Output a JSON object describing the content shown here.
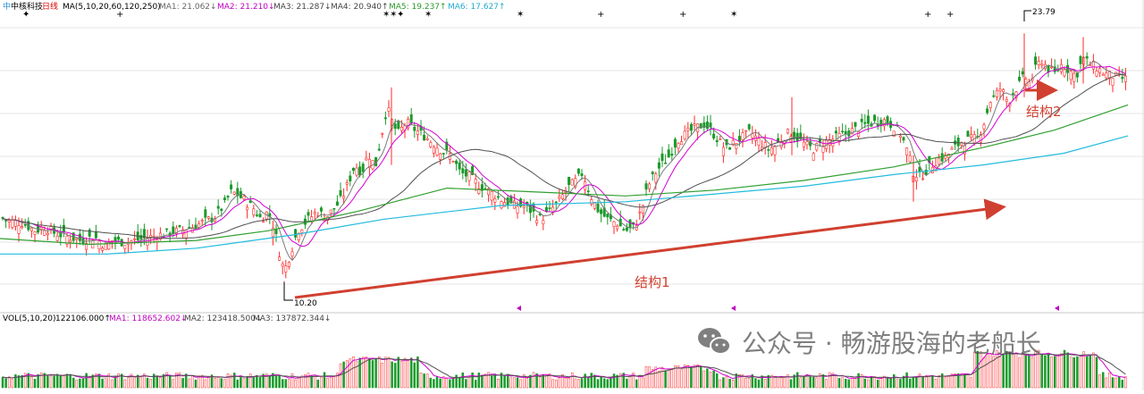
{
  "colors": {
    "up": "#ff2a2a",
    "down": "#1a9a2a",
    "ma1": "#7a7a7a",
    "ma2": "#d400d4",
    "ma3": "#505050",
    "ma4": "#30a030",
    "ma5": "#22bbdd",
    "annot": "#d04030",
    "vol_ma1": "#d400d4",
    "vol_ma2": "#505050"
  },
  "header": {
    "name": "中核科技",
    "period": "日线",
    "ma_params": "MA(5,10,20,60,120,250)",
    "ma1": "MA1: 21.062↓",
    "ma2": "MA2: 21.210↓",
    "ma3": "MA3: 21.287↓",
    "ma4": "MA4: 20.940↑",
    "ma5": "MA5: 19.237↑",
    "ma6": "MA6: 17.627↑"
  },
  "vol_header": {
    "params": "VOL(5,10,20)",
    "value": "122106.000↑",
    "ma1": "MA1: 118652.602↓",
    "ma2": "MA2: 123418.500↓",
    "ma3": "MA3: 137872.344↓"
  },
  "annotations": {
    "low_label": "10.20",
    "high_label": "23.79",
    "struct1": "结构1",
    "struct2": "结构2"
  },
  "watermark": {
    "text": "公众号 · 畅游股海的老船长",
    "icon": "wechat-icon"
  },
  "chart_data": {
    "type": "candlestick",
    "y_range": [
      9.6,
      24.5
    ],
    "series": [
      "MA1",
      "MA2",
      "MA3",
      "MA4",
      "MA5",
      "MA6"
    ],
    "close_path": [
      [
        0,
        14.3
      ],
      [
        10,
        14.1
      ],
      [
        25,
        14.0
      ],
      [
        40,
        13.6
      ],
      [
        50,
        13.8
      ],
      [
        60,
        13.5
      ],
      [
        75,
        13.3
      ],
      [
        90,
        13.1
      ],
      [
        105,
        13.3
      ],
      [
        118,
        12.8
      ],
      [
        125,
        13.1
      ],
      [
        140,
        13.0
      ],
      [
        160,
        13.2
      ],
      [
        180,
        13.4
      ],
      [
        200,
        13.6
      ],
      [
        215,
        13.8
      ],
      [
        225,
        14.0
      ],
      [
        240,
        14.3
      ],
      [
        252,
        15.0
      ],
      [
        258,
        15.6
      ],
      [
        265,
        15.5
      ],
      [
        275,
        15.1
      ],
      [
        285,
        14.7
      ],
      [
        292,
        14.2
      ],
      [
        300,
        14.6
      ],
      [
        307,
        13.7
      ],
      [
        313,
        12.4
      ],
      [
        318,
        11.5
      ],
      [
        324,
        12.3
      ],
      [
        333,
        13.6
      ],
      [
        345,
        14.2
      ],
      [
        355,
        14.6
      ],
      [
        365,
        14.3
      ],
      [
        375,
        14.8
      ],
      [
        383,
        15.3
      ],
      [
        390,
        16.1
      ],
      [
        397,
        17.0
      ],
      [
        405,
        16.6
      ],
      [
        412,
        17.6
      ],
      [
        420,
        16.9
      ],
      [
        428,
        18.8
      ],
      [
        433,
        20.0
      ],
      [
        438,
        19.3
      ],
      [
        445,
        18.6
      ],
      [
        455,
        19.2
      ],
      [
        465,
        18.8
      ],
      [
        475,
        18.5
      ],
      [
        485,
        18.1
      ],
      [
        495,
        17.7
      ],
      [
        505,
        17.5
      ],
      [
        515,
        16.6
      ],
      [
        525,
        16.4
      ],
      [
        535,
        16.0
      ],
      [
        545,
        15.7
      ],
      [
        555,
        15.4
      ],
      [
        565,
        15.1
      ],
      [
        575,
        14.9
      ],
      [
        585,
        14.9
      ],
      [
        595,
        14.6
      ],
      [
        605,
        14.2
      ],
      [
        615,
        14.6
      ],
      [
        625,
        15.1
      ],
      [
        635,
        15.8
      ],
      [
        645,
        16.2
      ],
      [
        652,
        16.6
      ],
      [
        660,
        15.5
      ],
      [
        670,
        14.6
      ],
      [
        680,
        14.2
      ],
      [
        690,
        14.0
      ],
      [
        700,
        13.6
      ],
      [
        710,
        13.8
      ],
      [
        718,
        14.7
      ],
      [
        725,
        15.9
      ],
      [
        732,
        16.5
      ],
      [
        740,
        17.0
      ],
      [
        748,
        17.4
      ],
      [
        758,
        18.3
      ],
      [
        768,
        18.6
      ],
      [
        778,
        18.9
      ],
      [
        788,
        19.1
      ],
      [
        795,
        18.8
      ],
      [
        805,
        18.2
      ],
      [
        812,
        17.8
      ],
      [
        820,
        18.1
      ],
      [
        830,
        18.4
      ],
      [
        840,
        18.7
      ],
      [
        850,
        18.2
      ],
      [
        860,
        17.8
      ],
      [
        868,
        18.0
      ],
      [
        876,
        18.4
      ],
      [
        884,
        18.7
      ],
      [
        892,
        18.4
      ],
      [
        902,
        18.0
      ],
      [
        910,
        17.8
      ],
      [
        920,
        18.1
      ],
      [
        930,
        18.3
      ],
      [
        940,
        18.5
      ],
      [
        950,
        18.7
      ],
      [
        960,
        18.9
      ],
      [
        970,
        19.1
      ],
      [
        980,
        19.2
      ],
      [
        990,
        19.3
      ],
      [
        1000,
        19.0
      ],
      [
        1008,
        18.6
      ],
      [
        1016,
        17.6
      ],
      [
        1022,
        16.6
      ],
      [
        1030,
        16.4
      ],
      [
        1040,
        16.9
      ],
      [
        1050,
        17.3
      ],
      [
        1058,
        17.4
      ],
      [
        1066,
        17.8
      ],
      [
        1076,
        18.2
      ],
      [
        1084,
        18.3
      ],
      [
        1094,
        18.4
      ],
      [
        1102,
        19.3
      ],
      [
        1108,
        20.3
      ],
      [
        1114,
        20.6
      ],
      [
        1120,
        21.0
      ],
      [
        1128,
        20.2
      ],
      [
        1134,
        20.8
      ],
      [
        1140,
        21.1
      ],
      [
        1146,
        21.6
      ],
      [
        1152,
        21.2
      ],
      [
        1160,
        22.1
      ],
      [
        1166,
        22.4
      ],
      [
        1172,
        22.0
      ],
      [
        1180,
        21.7
      ],
      [
        1188,
        22.2
      ],
      [
        1196,
        21.9
      ],
      [
        1204,
        21.6
      ],
      [
        1212,
        22.5
      ],
      [
        1220,
        22.2
      ],
      [
        1228,
        22.0
      ],
      [
        1236,
        21.7
      ],
      [
        1244,
        21.6
      ],
      [
        1252,
        21.5
      ],
      [
        1262,
        21.4
      ]
    ],
    "ma_paths": {
      "MA4": [
        [
          0,
          13.2
        ],
        [
          100,
          12.9
        ],
        [
          220,
          13.1
        ],
        [
          300,
          13.6
        ],
        [
          400,
          14.6
        ],
        [
          500,
          15.8
        ],
        [
          600,
          15.6
        ],
        [
          700,
          15.4
        ],
        [
          800,
          15.7
        ],
        [
          900,
          16.2
        ],
        [
          1000,
          16.9
        ],
        [
          1100,
          17.9
        ],
        [
          1180,
          18.8
        ],
        [
          1262,
          20.1
        ]
      ],
      "MA5": [
        [
          0,
          12.4
        ],
        [
          120,
          12.4
        ],
        [
          220,
          12.7
        ],
        [
          330,
          13.4
        ],
        [
          430,
          14.2
        ],
        [
          560,
          14.9
        ],
        [
          700,
          15.1
        ],
        [
          800,
          15.5
        ],
        [
          900,
          15.9
        ],
        [
          1000,
          16.5
        ],
        [
          1100,
          17.0
        ],
        [
          1190,
          17.6
        ],
        [
          1262,
          18.5
        ]
      ]
    },
    "vol_y_range": [
      0,
      1
    ]
  }
}
